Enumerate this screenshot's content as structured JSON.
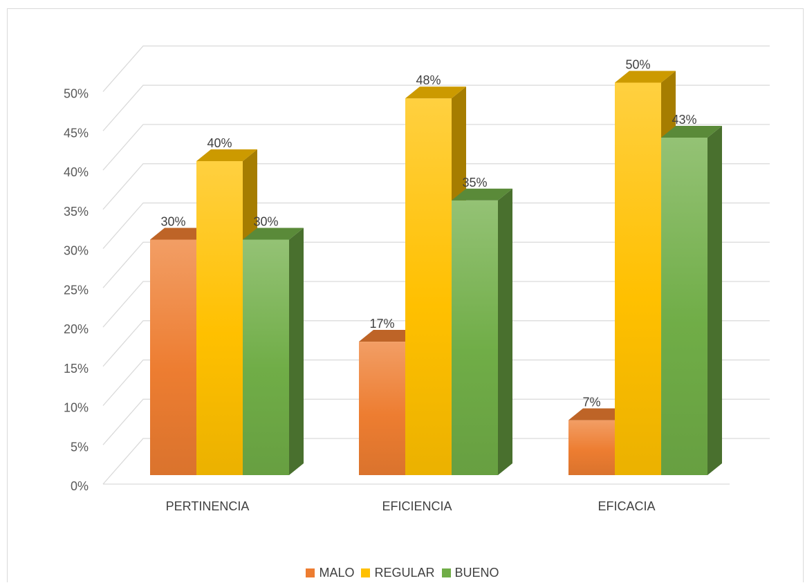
{
  "chart_data": {
    "type": "bar",
    "style": "3d-clustered-column",
    "categories": [
      "PERTINENCIA",
      "EFICIENCIA",
      "EFICACIA"
    ],
    "series": [
      {
        "name": "MALO",
        "values": [
          30,
          17,
          7
        ],
        "color": "#ed7d31",
        "labels": [
          "30%",
          "17%",
          "7%"
        ]
      },
      {
        "name": "REGULAR",
        "values": [
          40,
          48,
          50
        ],
        "color": "#ffc000",
        "labels": [
          "40%",
          "48%",
          "50%"
        ]
      },
      {
        "name": "BUENO",
        "values": [
          30,
          35,
          43
        ],
        "color": "#70ad47",
        "labels": [
          "30%",
          "35%",
          "43%"
        ]
      }
    ],
    "yticks": [
      "0%",
      "5%",
      "10%",
      "15%",
      "20%",
      "25%",
      "30%",
      "35%",
      "40%",
      "45%",
      "50%"
    ],
    "ylim": [
      0,
      50
    ],
    "grid": true,
    "legend": "bottom-center"
  }
}
